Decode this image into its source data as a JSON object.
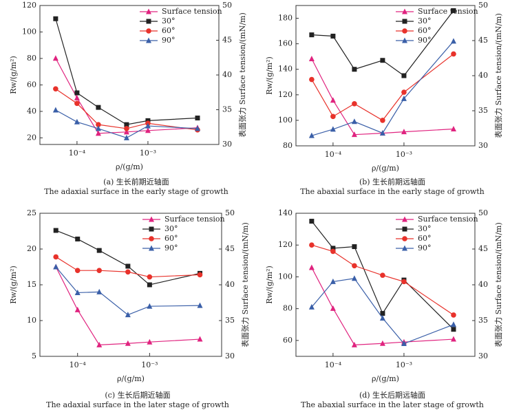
{
  "chart_data": [
    {
      "type": "line",
      "panel_label": "(a) 生长前期近轴面",
      "caption": "The adaxial surface in the early stage of growth",
      "x_label": "ρ/(g/m)",
      "y_label": "Rw/(g/m²)",
      "y2_label": "表面张力 Surface tension/(mN/m)",
      "x_log": true,
      "xlim": [
        3e-05,
        0.01
      ],
      "xticks": [
        {
          "value": 0.0001,
          "label": "10⁻⁴"
        },
        {
          "value": 0.001,
          "label": "10⁻³"
        }
      ],
      "ylim": [
        15,
        120
      ],
      "yticks": [
        20,
        40,
        60,
        80,
        100,
        120
      ],
      "y2lim": [
        30,
        50
      ],
      "y2ticks": [
        30,
        35,
        40,
        45,
        50
      ],
      "legend": "upper right",
      "grid": false,
      "x": [
        5e-05,
        0.0001,
        0.0002,
        0.0005,
        0.001,
        0.005
      ],
      "series": [
        {
          "name": "Surface tension",
          "color": "#e0237f",
          "marker": "triangle",
          "axis": "y2",
          "values": [
            42.4,
            36.7,
            31.6,
            31.8,
            32.0,
            32.4
          ]
        },
        {
          "name": "30°",
          "color": "#222222",
          "marker": "square",
          "values": [
            110,
            54,
            43,
            30,
            33,
            35
          ]
        },
        {
          "name": "60°",
          "color": "#e8322b",
          "marker": "circle",
          "values": [
            57,
            46,
            30,
            27,
            31,
            26
          ]
        },
        {
          "name": "90°",
          "color": "#3a5fa8",
          "marker": "triangle",
          "values": [
            41,
            32,
            27,
            20,
            29,
            27
          ]
        }
      ]
    },
    {
      "type": "line",
      "panel_label": "(b) 生长前期远轴面",
      "caption": "The abaxial surface in the early stage of growth",
      "x_label": "ρ/(g/m)",
      "y_label": "Rw/(g/m²)",
      "y2_label": "表面张力 Surface tension/(mN/m)",
      "x_log": true,
      "xlim": [
        3e-05,
        0.01
      ],
      "xticks": [
        {
          "value": 0.0001,
          "label": "10⁻⁴"
        },
        {
          "value": 0.001,
          "label": "10⁻³"
        }
      ],
      "ylim": [
        80,
        190
      ],
      "yticks": [
        80,
        100,
        120,
        140,
        160,
        180
      ],
      "y2lim": [
        30,
        50
      ],
      "y2ticks": [
        30,
        35,
        40,
        45,
        50
      ],
      "legend": "upper right",
      "grid": false,
      "x": [
        5e-05,
        0.0001,
        0.0002,
        0.0005,
        0.001,
        0.005
      ],
      "series": [
        {
          "name": "Surface tension",
          "color": "#e0237f",
          "marker": "triangle",
          "axis": "y2",
          "values": [
            42.4,
            36.5,
            31.6,
            31.8,
            32.0,
            32.4
          ]
        },
        {
          "name": "30°",
          "color": "#222222",
          "marker": "square",
          "values": [
            167,
            166,
            140,
            147,
            135,
            186
          ]
        },
        {
          "name": "60°",
          "color": "#e8322b",
          "marker": "circle",
          "values": [
            132,
            103,
            113,
            100,
            122,
            152
          ]
        },
        {
          "name": "90°",
          "color": "#3a5fa8",
          "marker": "triangle",
          "values": [
            88,
            93,
            99,
            90,
            117,
            162
          ]
        }
      ]
    },
    {
      "type": "line",
      "panel_label": "(c) 生长后期近轴面",
      "caption": "The adaxial surface in the later stage of growth",
      "x_label": "ρ/(g/m)",
      "y_label": "Rw/(g/m²)",
      "y2_label": "表面张力 Surface tension/(mN/m)",
      "x_log": true,
      "xlim": [
        3e-05,
        0.01
      ],
      "xticks": [
        {
          "value": 0.0001,
          "label": "10⁻⁴"
        },
        {
          "value": 0.001,
          "label": "10⁻³"
        }
      ],
      "ylim": [
        5,
        25
      ],
      "yticks": [
        5,
        10,
        15,
        20,
        25
      ],
      "y2lim": [
        30,
        50
      ],
      "y2ticks": [
        30,
        35,
        40,
        45,
        50
      ],
      "legend": "upper right",
      "grid": false,
      "x": [
        5e-05,
        0.0001,
        0.0002,
        0.0005,
        0.001,
        0.005
      ],
      "series": [
        {
          "name": "Surface tension",
          "color": "#e0237f",
          "marker": "triangle",
          "axis": "y2",
          "values": [
            42.5,
            36.5,
            31.6,
            31.8,
            32.0,
            32.4
          ]
        },
        {
          "name": "30°",
          "color": "#222222",
          "marker": "square",
          "values": [
            22.6,
            21.4,
            19.8,
            17.6,
            15.0,
            16.6
          ]
        },
        {
          "name": "60°",
          "color": "#e8322b",
          "marker": "circle",
          "values": [
            18.9,
            17.0,
            17.0,
            16.8,
            16.1,
            16.4
          ]
        },
        {
          "name": "90°",
          "color": "#3a5fa8",
          "marker": "triangle",
          "values": [
            17.5,
            13.9,
            14.0,
            10.8,
            12.0,
            12.1
          ]
        }
      ]
    },
    {
      "type": "line",
      "panel_label": "(d) 生长后期远轴面",
      "caption": "The abaxial surface in the later stage of growth",
      "x_label": "ρ/(g/m)",
      "y_label": "Rw/(g/m²)",
      "y2_label": "表面张力 Surface tension/(mN/m)",
      "x_log": true,
      "xlim": [
        3e-05,
        0.01
      ],
      "xticks": [
        {
          "value": 0.0001,
          "label": "10⁻⁴"
        },
        {
          "value": 0.001,
          "label": "10⁻³"
        }
      ],
      "ylim": [
        50,
        140
      ],
      "yticks": [
        60,
        80,
        100,
        120,
        140
      ],
      "y2lim": [
        30,
        50
      ],
      "y2ticks": [
        30,
        35,
        40,
        45,
        50
      ],
      "legend": "upper right",
      "grid": false,
      "x": [
        5e-05,
        0.0001,
        0.0002,
        0.0005,
        0.001,
        0.005
      ],
      "series": [
        {
          "name": "Surface tension",
          "color": "#e0237f",
          "marker": "triangle",
          "axis": "y2",
          "values": [
            42.4,
            36.7,
            31.6,
            31.8,
            32.0,
            32.4
          ]
        },
        {
          "name": "30°",
          "color": "#222222",
          "marker": "square",
          "values": [
            135,
            118,
            119,
            77,
            98,
            67
          ]
        },
        {
          "name": "60°",
          "color": "#e8322b",
          "marker": "circle",
          "values": [
            120,
            116,
            107,
            101,
            97,
            76
          ]
        },
        {
          "name": "90°",
          "color": "#3a5fa8",
          "marker": "triangle",
          "values": [
            81,
            97,
            99,
            74,
            58,
            70
          ]
        }
      ]
    }
  ]
}
